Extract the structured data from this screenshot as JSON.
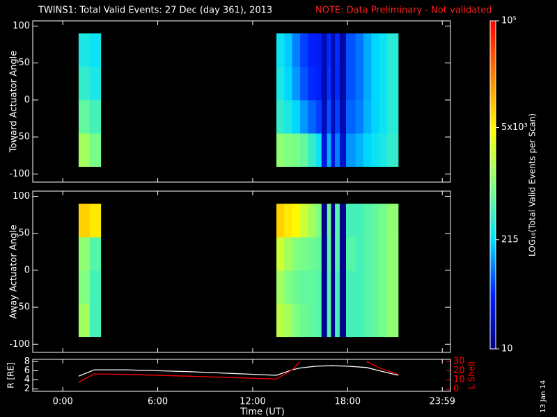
{
  "title": "TWINS1: Total Valid Events: 27 Dec (day 361), 2013",
  "note": "NOTE: Data Preliminary - Not validated",
  "date_stamp": "13 Jan 14",
  "colorbar": {
    "label": "LOG₁₀(Total Valid Events per Scan)",
    "lim": [
      10,
      100000
    ],
    "log": true,
    "ticks": [
      10,
      215,
      {
        "value": 5000,
        "label": "5x10³"
      },
      {
        "value": 100000,
        "label": "10⁵"
      }
    ],
    "colorscale": [
      "#000080",
      "#0020ff",
      "#00e0ff",
      "#80ff80",
      "#ffff00",
      "#ff8000",
      "#ff0000"
    ]
  },
  "chart_data": [
    {
      "type": "heatmap",
      "ylabel": "Toward Actuator Angle",
      "xlim": [
        -1.9,
        24.5
      ],
      "ylim": [
        -111,
        107
      ],
      "yticks": [
        -100,
        -50,
        0,
        50,
        100
      ],
      "x_edges": [
        1.0,
        1.7,
        2.4,
        13.5,
        14.0,
        14.5,
        15.0,
        15.5,
        16.0,
        16.35,
        16.7,
        16.95,
        17.2,
        17.5,
        17.9,
        18.5,
        19.0,
        19.5,
        20.0,
        20.5,
        21.2
      ],
      "y_edges": [
        -90,
        -45,
        0,
        45,
        90
      ],
      "values": [
        [
          1500,
          900,
          null,
          1200,
          1000,
          900,
          700,
          400,
          250,
          30,
          150,
          30,
          100,
          25,
          120,
          150,
          200,
          250,
          300,
          400
        ],
        [
          700,
          500,
          null,
          400,
          300,
          200,
          120,
          80,
          60,
          20,
          70,
          20,
          60,
          18,
          80,
          100,
          150,
          200,
          250,
          350
        ],
        [
          400,
          300,
          null,
          300,
          200,
          120,
          70,
          50,
          45,
          18,
          55,
          18,
          50,
          16,
          70,
          90,
          140,
          200,
          250,
          350
        ],
        [
          300,
          250,
          null,
          250,
          180,
          100,
          60,
          45,
          40,
          18,
          50,
          18,
          50,
          15,
          70,
          90,
          140,
          200,
          250,
          350
        ]
      ]
    },
    {
      "type": "heatmap",
      "ylabel": "Away Actuator Angle",
      "xlim": [
        -1.9,
        24.5
      ],
      "ylim": [
        -111,
        107
      ],
      "yticks": [
        -100,
        -50,
        0,
        50,
        100
      ],
      "x_edges": [
        1.0,
        1.7,
        2.4,
        13.5,
        14.0,
        14.5,
        15.0,
        15.5,
        16.0,
        16.35,
        16.7,
        16.95,
        17.2,
        17.5,
        17.9,
        18.5,
        19.0,
        19.5,
        20.0,
        20.5,
        21.2
      ],
      "y_edges": [
        -90,
        -45,
        0,
        45,
        90
      ],
      "values": [
        [
          1500,
          500,
          null,
          2000,
          1500,
          1000,
          800,
          700,
          600,
          12,
          600,
          12,
          500,
          12,
          500,
          500,
          600,
          700,
          900,
          1200
        ],
        [
          1000,
          500,
          null,
          1500,
          1000,
          800,
          700,
          700,
          600,
          12,
          600,
          12,
          500,
          12,
          500,
          500,
          600,
          700,
          900,
          1200
        ],
        [
          1200,
          600,
          null,
          2500,
          1500,
          1000,
          900,
          800,
          700,
          12,
          700,
          12,
          600,
          12,
          600,
          500,
          600,
          700,
          900,
          1200
        ],
        [
          8000,
          6000,
          null,
          8000,
          6000,
          5000,
          2500,
          1500,
          1000,
          12,
          800,
          12,
          600,
          12,
          500,
          500,
          600,
          700,
          900,
          1200
        ]
      ]
    },
    {
      "type": "line",
      "xlabel": "Time (UT)",
      "ylabel": "R [RE]",
      "y2label": "L Shell",
      "xlim": [
        -1.9,
        24.5
      ],
      "xticks": [
        {
          "value": 0,
          "label": "0:00"
        },
        {
          "value": 6,
          "label": "6:00"
        },
        {
          "value": 12,
          "label": "12:00"
        },
        {
          "value": 18,
          "label": "18:00"
        },
        {
          "value": 23.983,
          "label": "23:59"
        }
      ],
      "ylim": [
        1.5,
        8.5
      ],
      "yticks": [
        2,
        4,
        6,
        8
      ],
      "y2lim": [
        -2.25,
        32.25
      ],
      "y2ticks": [
        0,
        10,
        20,
        30
      ],
      "y2color": "#ff0000",
      "x": [
        1.0,
        2.0,
        4,
        8,
        13.5,
        14.5,
        15.0,
        16,
        17,
        18,
        19.2,
        20,
        21.2
      ],
      "series": [
        {
          "color": "#ffffff",
          "values": [
            4.8,
            6.2,
            6.2,
            5.8,
            5.0,
            6.2,
            6.6,
            7.0,
            7.1,
            7.0,
            6.7,
            6.0,
            5.0
          ]
        },
        {
          "color": "#ff0000",
          "axis": "y2",
          "values": [
            7.5,
            16.5,
            16,
            14,
            11,
            21,
            30,
            null,
            null,
            null,
            30,
            23,
            16
          ]
        }
      ]
    }
  ]
}
